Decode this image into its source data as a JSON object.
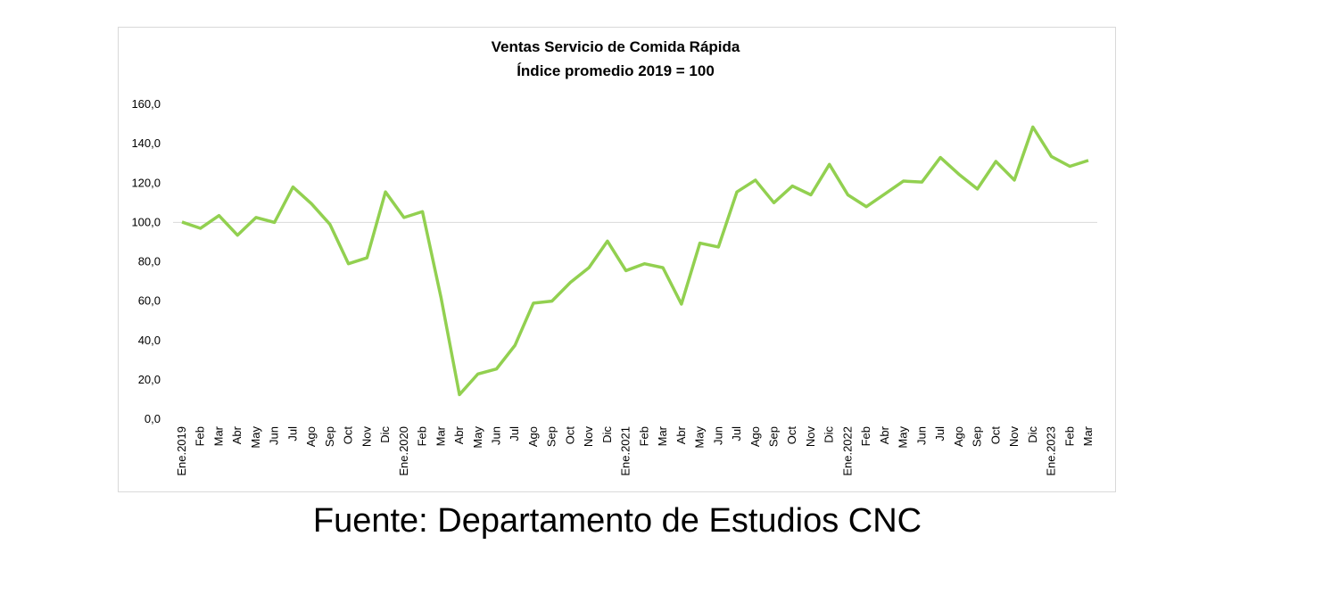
{
  "chart_data": {
    "type": "line",
    "title": "Ventas Servicio de Comida Rápida",
    "subtitle": "Índice promedio 2019 = 100",
    "categories": [
      "Ene.2019",
      "Feb",
      "Mar",
      "Abr",
      "May",
      "Jun",
      "Jul",
      "Ago",
      "Sep",
      "Oct",
      "Nov",
      "Dic",
      "Ene.2020",
      "Feb",
      "Mar",
      "Abr",
      "May",
      "Jun",
      "Jul",
      "Ago",
      "Sep",
      "Oct",
      "Nov",
      "Dic",
      "Ene.2021",
      "Feb",
      "Mar",
      "Abr",
      "May",
      "Jun",
      "Jul",
      "Ago",
      "Sep",
      "Oct",
      "Nov",
      "Dic",
      "Ene.2022",
      "Feb",
      "Abr",
      "May",
      "Jun",
      "Jul",
      "Ago",
      "Sep",
      "Oct",
      "Nov",
      "Dic",
      "Ene.2023",
      "Feb",
      "Mar"
    ],
    "series": [
      {
        "name": "Ventas",
        "color": "#92d050",
        "values": [
          100.2,
          97,
          103.5,
          93.5,
          102.5,
          100,
          118,
          109.5,
          99,
          79,
          82,
          115.5,
          102.5,
          105.5,
          62,
          12.5,
          23,
          25.5,
          37.5,
          59,
          60,
          69.5,
          77,
          90.5,
          75.5,
          79,
          77,
          58.5,
          89.5,
          87.5,
          115.5,
          121.5,
          110,
          118.5,
          114,
          129.5,
          114,
          108,
          114.5,
          121,
          120.5,
          133,
          124.5,
          117,
          131,
          121.5,
          148.5,
          133.5,
          128.5,
          131.5
        ]
      }
    ],
    "ylim": [
      0,
      160
    ],
    "yticks": [
      {
        "value": 0,
        "label": "0,0"
      },
      {
        "value": 20,
        "label": "20,0"
      },
      {
        "value": 40,
        "label": "40,0"
      },
      {
        "value": 60,
        "label": "60,0"
      },
      {
        "value": 80,
        "label": "80,0"
      },
      {
        "value": 100,
        "label": "100,0"
      },
      {
        "value": 120,
        "label": "120,0"
      },
      {
        "value": 140,
        "label": "140,0"
      },
      {
        "value": 160,
        "label": "160,0"
      }
    ],
    "reference_line": 100,
    "source": "Fuente: Departamento de Estudios CNC"
  }
}
